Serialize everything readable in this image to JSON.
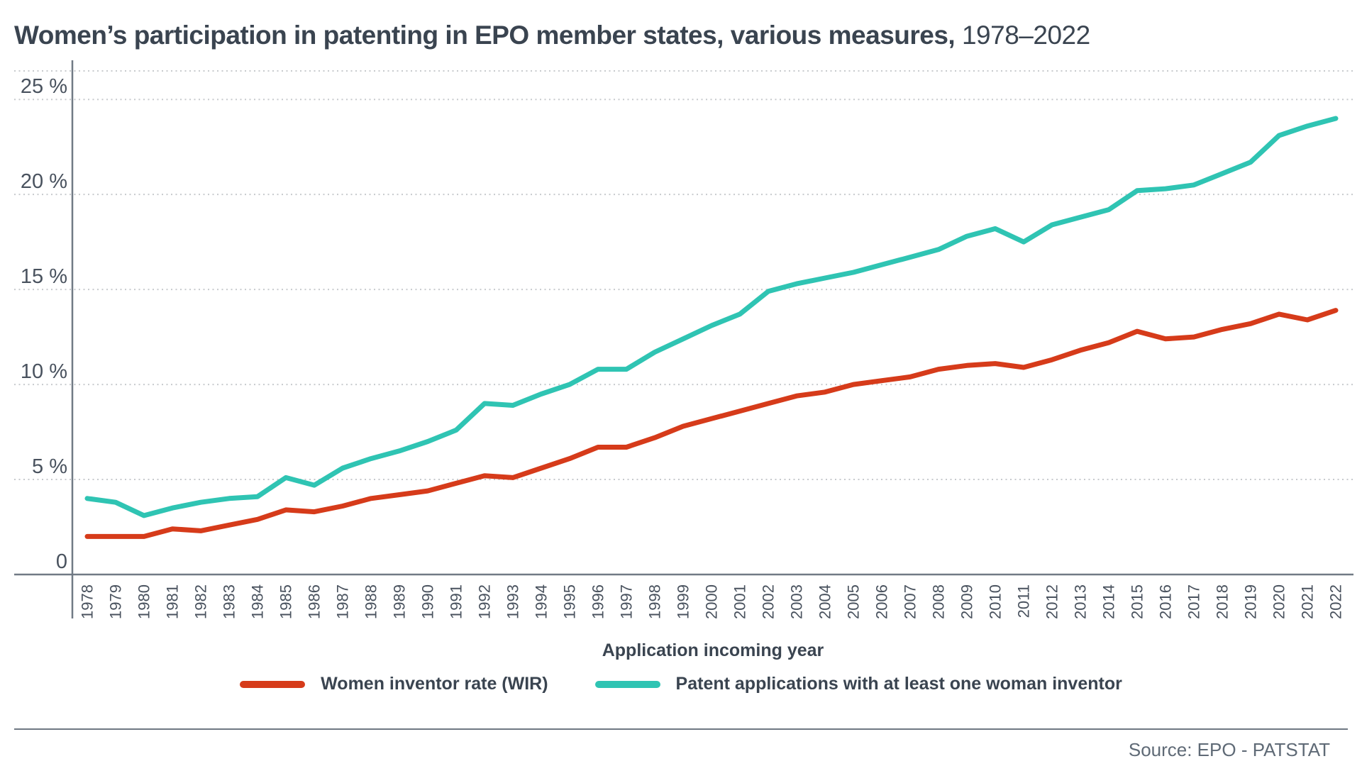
{
  "title": {
    "main": "Women’s participation in patenting in EPO member states, various measures,",
    "period": " 1978–2022"
  },
  "chart_data": {
    "type": "line",
    "x": [
      1978,
      1979,
      1980,
      1981,
      1982,
      1983,
      1984,
      1985,
      1986,
      1987,
      1988,
      1989,
      1990,
      1991,
      1992,
      1993,
      1994,
      1995,
      1996,
      1997,
      1998,
      1999,
      2000,
      2001,
      2002,
      2003,
      2004,
      2005,
      2006,
      2007,
      2008,
      2009,
      2010,
      2011,
      2012,
      2013,
      2014,
      2015,
      2016,
      2017,
      2018,
      2019,
      2020,
      2021,
      2022
    ],
    "series": [
      {
        "name": "Women inventor rate (WIR)",
        "color": "#d63b1a",
        "values": [
          2.0,
          2.0,
          2.0,
          2.4,
          2.3,
          2.6,
          2.9,
          3.4,
          3.3,
          3.6,
          4.0,
          4.2,
          4.4,
          4.8,
          5.2,
          5.1,
          5.6,
          6.1,
          6.7,
          6.7,
          7.2,
          7.8,
          8.2,
          8.6,
          9.0,
          9.4,
          9.6,
          10.0,
          10.2,
          10.4,
          10.8,
          11.0,
          11.1,
          10.9,
          11.3,
          11.8,
          12.2,
          12.8,
          12.4,
          12.5,
          12.9,
          13.2,
          13.7,
          13.4,
          13.9
        ]
      },
      {
        "name": "Patent applications with at least one woman inventor",
        "color": "#2fc4b3",
        "values": [
          4.0,
          3.8,
          3.1,
          3.5,
          3.8,
          4.0,
          4.1,
          5.1,
          4.7,
          5.6,
          6.1,
          6.5,
          7.0,
          7.6,
          9.0,
          8.9,
          9.5,
          10.0,
          10.8,
          10.8,
          11.7,
          12.4,
          13.1,
          13.7,
          14.9,
          15.3,
          15.6,
          15.9,
          16.3,
          16.7,
          17.1,
          17.8,
          18.2,
          17.5,
          18.4,
          18.8,
          19.2,
          20.2,
          20.3,
          20.5,
          21.1,
          21.7,
          23.1,
          23.6,
          24.0
        ]
      }
    ],
    "xlabel": "Application incoming year",
    "ylim": [
      0,
      26.5
    ],
    "yticks": [
      0,
      5,
      10,
      15,
      20,
      25
    ],
    "ytick_labels": [
      "0",
      "5 %",
      "10 %",
      "15 %",
      "20 %",
      "25 %"
    ],
    "grid": "dotted horizontal, top border dotted",
    "legend_position": "bottom"
  },
  "colors": {
    "text_dark": "#3a4450",
    "tick_text": "#49525e",
    "axis_line": "#717a85",
    "gridline": "#c7cacd"
  },
  "footer": {
    "source": "Source: EPO - PATSTAT"
  }
}
